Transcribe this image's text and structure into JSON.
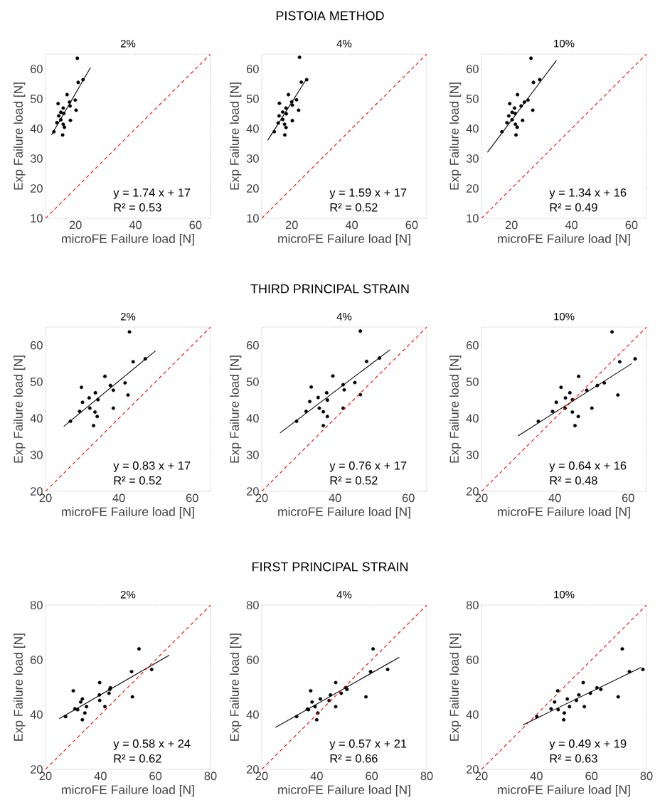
{
  "chart_data": [
    {
      "type": "scatter",
      "subtitle": "2%",
      "xlabel": "microFE Failure load [N]",
      "ylabel": "Exp Failure load [N]",
      "xlim": [
        10,
        65
      ],
      "ylim": [
        10,
        65
      ],
      "xticks": [
        20,
        40,
        60
      ],
      "yticks": [
        10,
        20,
        30,
        40,
        50,
        60
      ],
      "annotations": [
        "y = 1.74 x + 17",
        "R² = 0.53"
      ],
      "series": [
        {
          "type": "scatter",
          "color": "#000000",
          "marker": "circle",
          "x": [
            20.6,
            22.5,
            20.9,
            17.2,
            19.9,
            18.0,
            14.2,
            18.2,
            15.9,
            20.2,
            15.1,
            16.1,
            14.4,
            18.3,
            15.1,
            13.8,
            15.9,
            16.3,
            12.8,
            15.7
          ],
          "values": [
            63.6,
            56.4,
            55.5,
            51.4,
            49.6,
            48.9,
            48.4,
            47.6,
            46.9,
            46.2,
            45.5,
            45.1,
            44.3,
            42.8,
            43.0,
            42.0,
            41.5,
            40.5,
            39.0,
            37.9
          ]
        },
        {
          "type": "line",
          "color": "#000000",
          "x": [
            12,
            25
          ],
          "values": [
            37.9,
            60.5
          ]
        },
        {
          "type": "line",
          "color": "#ff0000",
          "line_style": "dashed",
          "x": [
            10,
            65
          ],
          "values": [
            10,
            65
          ]
        }
      ]
    },
    {
      "type": "scatter",
      "title": "PISTOIA METHOD",
      "subtitle": "4%",
      "xlabel": "microFE Failure load [N]",
      "ylabel": "Exp Failure load [N]",
      "xlim": [
        10,
        65
      ],
      "ylim": [
        10,
        65
      ],
      "xticks": [
        20,
        40,
        60
      ],
      "yticks": [
        10,
        20,
        30,
        40,
        50,
        60
      ],
      "annotations": [
        "y = 1.59 x + 17",
        "R² = 0.52"
      ],
      "series": [
        {
          "type": "scatter",
          "color": "#000000",
          "marker": "circle",
          "x": [
            22.6,
            25.0,
            23.2,
            18.9,
            21.6,
            20.0,
            15.9,
            20.2,
            18.1,
            22.3,
            17.0,
            18.2,
            15.8,
            20.2,
            17.0,
            15.5,
            17.6,
            18.1,
            14.2,
            17.7
          ],
          "values": [
            63.9,
            56.4,
            55.6,
            51.4,
            49.7,
            49.0,
            48.5,
            47.9,
            46.9,
            46.2,
            45.6,
            45.0,
            44.3,
            42.7,
            43.1,
            41.9,
            41.5,
            40.4,
            39.0,
            37.9
          ]
        },
        {
          "type": "line",
          "color": "#000000",
          "x": [
            12,
            25
          ],
          "values": [
            36.1,
            56.8
          ]
        },
        {
          "type": "line",
          "color": "#ff0000",
          "line_style": "dashed",
          "x": [
            10,
            65
          ],
          "values": [
            10,
            65
          ]
        }
      ]
    },
    {
      "type": "scatter",
      "subtitle": "10%",
      "xlabel": "microFE Failure load [N]",
      "ylabel": "Exp Failure load [N]",
      "xlim": [
        10,
        65
      ],
      "ylim": [
        10,
        65
      ],
      "xticks": [
        20,
        40,
        60
      ],
      "yticks": [
        10,
        20,
        30,
        40,
        50,
        60
      ],
      "annotations": [
        "y = 1.34 x + 16",
        "R² = 0.49"
      ],
      "series": [
        {
          "type": "scatter",
          "color": "#000000",
          "marker": "circle",
          "x": [
            26.5,
            29.4,
            27.3,
            22.0,
            25.5,
            24.3,
            19.4,
            23.2,
            21.0,
            27.1,
            20.2,
            21.2,
            19.1,
            23.7,
            20.2,
            18.5,
            21.3,
            21.9,
            16.8,
            21.5
          ],
          "values": [
            63.6,
            56.4,
            55.5,
            51.4,
            49.6,
            48.9,
            48.4,
            47.6,
            46.9,
            46.2,
            45.5,
            45.1,
            44.3,
            42.8,
            43.0,
            42.0,
            41.5,
            40.5,
            39.0,
            37.9
          ]
        },
        {
          "type": "line",
          "color": "#000000",
          "x": [
            12,
            35
          ],
          "values": [
            32.1,
            62.9
          ]
        },
        {
          "type": "line",
          "color": "#ff0000",
          "line_style": "dashed",
          "x": [
            10,
            65
          ],
          "values": [
            10,
            65
          ]
        }
      ]
    },
    {
      "type": "scatter",
      "subtitle": "2%",
      "xlabel": "microFE Failure load [N]",
      "ylabel": "Exp Failure load [N]",
      "xlim": [
        20,
        65
      ],
      "ylim": [
        20,
        65
      ],
      "xticks": [
        20,
        40,
        60
      ],
      "yticks": [
        20,
        30,
        40,
        50,
        60
      ],
      "annotations": [
        "y = 0.83 x + 17",
        "R² = 0.52"
      ],
      "series": [
        {
          "type": "scatter",
          "color": "#000000",
          "marker": "circle",
          "x": [
            42.9,
            47.2,
            43.9,
            36.2,
            41.7,
            37.7,
            29.8,
            38.5,
            33.6,
            42.5,
            31.9,
            34.3,
            30.1,
            38.5,
            32.1,
            29.3,
            33.5,
            34.1,
            26.8,
            33.1
          ],
          "values": [
            63.7,
            56.3,
            55.5,
            51.5,
            49.7,
            49.0,
            48.5,
            47.7,
            47.0,
            46.4,
            45.6,
            45.1,
            44.4,
            42.8,
            42.8,
            41.9,
            41.7,
            40.5,
            39.2,
            38.0
          ]
        },
        {
          "type": "line",
          "color": "#000000",
          "x": [
            25,
            50
          ],
          "values": [
            37.8,
            58.5
          ]
        },
        {
          "type": "line",
          "color": "#ff0000",
          "line_style": "dashed",
          "x": [
            20,
            65
          ],
          "values": [
            20,
            65
          ]
        }
      ]
    },
    {
      "type": "scatter",
      "title": "THIRD PRINCIPAL STRAIN",
      "subtitle": "4%",
      "xlabel": "microFE Failure load [N]",
      "ylabel": "Exp Failure load [N]",
      "xlim": [
        20,
        65
      ],
      "ylim": [
        20,
        65
      ],
      "xticks": [
        20,
        40,
        60
      ],
      "yticks": [
        20,
        30,
        40,
        50,
        60
      ],
      "annotations": [
        "y = 0.76 x + 17",
        "R² = 0.52"
      ],
      "series": [
        {
          "type": "scatter",
          "color": "#000000",
          "marker": "circle",
          "x": [
            46.9,
            52.1,
            48.6,
            39.4,
            45.4,
            42.2,
            33.5,
            42.5,
            37.7,
            46.9,
            35.4,
            37.9,
            33.1,
            42.2,
            35.7,
            32.1,
            36.8,
            37.9,
            29.5,
            36.8
          ],
          "values": [
            63.9,
            56.5,
            55.6,
            51.6,
            49.8,
            49.2,
            48.6,
            47.8,
            47.0,
            46.5,
            45.7,
            45.0,
            44.6,
            42.8,
            42.8,
            41.9,
            41.8,
            40.5,
            39.2,
            38.0
          ]
        },
        {
          "type": "line",
          "color": "#000000",
          "x": [
            25,
            55
          ],
          "values": [
            36.0,
            58.8
          ]
        },
        {
          "type": "line",
          "color": "#ff0000",
          "line_style": "dashed",
          "x": [
            20,
            65
          ],
          "values": [
            20,
            65
          ]
        }
      ]
    },
    {
      "type": "scatter",
      "subtitle": "10%",
      "xlabel": "microFE Failure load [N]",
      "ylabel": "Exp Failure load [N]",
      "xlim": [
        20,
        65
      ],
      "ylim": [
        20,
        65
      ],
      "xticks": [
        20,
        40,
        60
      ],
      "yticks": [
        20,
        30,
        40,
        50,
        60
      ],
      "annotations": [
        "y = 0.64 x + 16",
        "R² = 0.48"
      ],
      "series": [
        {
          "type": "scatter",
          "color": "#000000",
          "marker": "circle",
          "x": [
            55.6,
            61.9,
            57.7,
            46.5,
            53.5,
            51.6,
            41.7,
            48.7,
            44.1,
            57.2,
            42.9,
            44.8,
            40.4,
            50.1,
            42.8,
            39.4,
            44.8,
            46.4,
            35.5,
            45.5
          ],
          "values": [
            63.7,
            56.3,
            55.5,
            51.5,
            49.7,
            49.0,
            48.5,
            47.7,
            47.0,
            46.4,
            45.6,
            45.1,
            44.4,
            42.8,
            42.8,
            41.9,
            41.7,
            40.5,
            39.2,
            38.0
          ]
        },
        {
          "type": "line",
          "color": "#000000",
          "x": [
            30,
            61
          ],
          "values": [
            35.2,
            55.0
          ]
        },
        {
          "type": "line",
          "color": "#ff0000",
          "line_style": "dashed",
          "x": [
            20,
            65
          ],
          "values": [
            20,
            65
          ]
        }
      ]
    },
    {
      "type": "scatter",
      "subtitle": "2%",
      "xlabel": "microFE Failure load [N]",
      "ylabel": "Exp Failure load [N]",
      "xlim": [
        20,
        80
      ],
      "ylim": [
        20,
        80
      ],
      "xticks": [
        20,
        40,
        60,
        80
      ],
      "yticks": [
        20,
        40,
        60,
        80
      ],
      "annotations": [
        "y = 0.58 x + 24",
        "R² = 0.62"
      ],
      "series": [
        {
          "type": "scatter",
          "color": "#000000",
          "marker": "circle",
          "x": [
            54.0,
            58.6,
            51.3,
            39.7,
            43.6,
            43.4,
            30.1,
            43.1,
            39.6,
            51.6,
            33.4,
            39.7,
            32.8,
            41.6,
            34.9,
            30.7,
            31.7,
            34.3,
            27.3,
            33.4
          ],
          "values": [
            64.0,
            56.5,
            55.7,
            51.7,
            49.8,
            49.2,
            48.7,
            47.8,
            47.2,
            46.5,
            45.7,
            45.2,
            44.6,
            42.9,
            42.9,
            42.1,
            41.8,
            40.6,
            39.3,
            38.1
          ]
        },
        {
          "type": "line",
          "color": "#000000",
          "x": [
            25,
            65
          ],
          "values": [
            38.5,
            61.7
          ]
        },
        {
          "type": "line",
          "color": "#ff0000",
          "line_style": "dashed",
          "x": [
            20,
            80
          ],
          "values": [
            20,
            80
          ]
        }
      ]
    },
    {
      "type": "scatter",
      "title": "FIRST PRINCIPAL STRAIN",
      "subtitle": "4%",
      "xlabel": "microFE Failure load [N]",
      "ylabel": "Exp Failure load [N]",
      "xlim": [
        20,
        80
      ],
      "ylim": [
        20,
        80
      ],
      "xticks": [
        20,
        40,
        60,
        80
      ],
      "yticks": [
        20,
        40,
        60,
        80
      ],
      "annotations": [
        "y = 0.57 x + 21",
        "R² = 0.66"
      ],
      "series": [
        {
          "type": "scatter",
          "color": "#000000",
          "marker": "circle",
          "x": [
            60.5,
            65.8,
            59.6,
            46.9,
            50.6,
            51.0,
            37.8,
            48.9,
            45.0,
            57.9,
            41.3,
            44.5,
            38.3,
            46.9,
            39.4,
            36.6,
            37.0,
            40.4,
            32.7,
            40.0
          ],
          "values": [
            64.0,
            56.5,
            55.7,
            51.7,
            49.8,
            49.2,
            48.7,
            47.8,
            47.2,
            46.5,
            45.7,
            45.1,
            44.6,
            42.9,
            42.9,
            42.0,
            41.8,
            40.6,
            39.3,
            38.1
          ]
        },
        {
          "type": "line",
          "color": "#000000",
          "x": [
            25,
            70
          ],
          "values": [
            35.3,
            60.9
          ]
        },
        {
          "type": "line",
          "color": "#ff0000",
          "line_style": "dashed",
          "x": [
            20,
            80
          ],
          "values": [
            20,
            80
          ]
        }
      ]
    },
    {
      "type": "scatter",
      "subtitle": "10%",
      "xlabel": "microFE Failure load [N]",
      "ylabel": "Exp Failure load [N]",
      "xlim": [
        20,
        80
      ],
      "ylim": [
        20,
        80
      ],
      "xticks": [
        20,
        40,
        60,
        80
      ],
      "yticks": [
        20,
        40,
        60,
        80
      ],
      "annotations": [
        "y = 0.49 x + 19",
        "R² = 0.63"
      ],
      "series": [
        {
          "type": "scatter",
          "color": "#000000",
          "marker": "circle",
          "x": [
            71.2,
            78.7,
            73.8,
            57.0,
            62.0,
            63.4,
            47.7,
            59.6,
            55.4,
            69.7,
            51.2,
            54.5,
            46.6,
            57.4,
            52.0,
            45.3,
            47.9,
            50.1,
            40.1,
            49.9
          ],
          "values": [
            64.0,
            56.5,
            55.7,
            51.7,
            49.8,
            49.2,
            48.7,
            47.8,
            47.2,
            46.5,
            45.7,
            45.2,
            44.6,
            42.9,
            42.9,
            42.1,
            41.8,
            40.6,
            39.3,
            38.1
          ]
        },
        {
          "type": "line",
          "color": "#000000",
          "x": [
            35,
            78
          ],
          "values": [
            36.2,
            57.2
          ]
        },
        {
          "type": "line",
          "color": "#ff0000",
          "line_style": "dashed",
          "x": [
            20,
            80
          ],
          "values": [
            20,
            80
          ]
        }
      ]
    }
  ]
}
